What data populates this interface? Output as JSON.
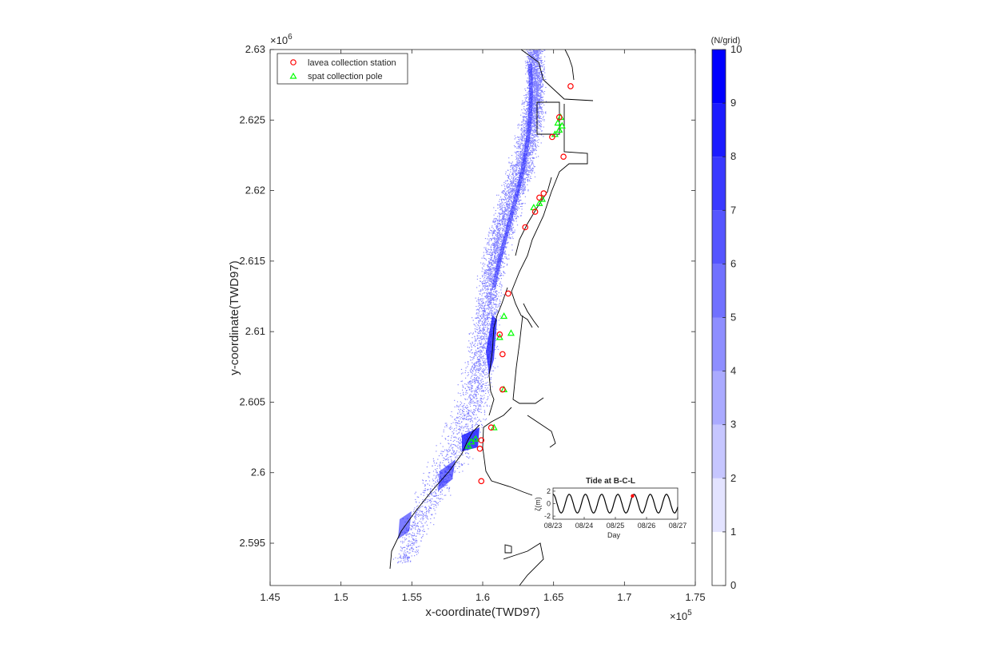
{
  "chart_data": [
    {
      "type": "scatter",
      "title": "",
      "xlabel": "x-coordinate(TWD97)",
      "ylabel": "y-coordinate(TWD97)",
      "x_exponent": "×10",
      "x_exponent_power": "5",
      "y_exponent": "×10",
      "y_exponent_power": "6",
      "xlim": [
        1.45,
        1.75
      ],
      "ylim": [
        2.592,
        2.63
      ],
      "x_ticks": [
        "1.45",
        "1.5",
        "1.55",
        "1.6",
        "1.65",
        "1.7",
        "1.75"
      ],
      "y_ticks": [
        "2.595",
        "2.6",
        "2.605",
        "2.61",
        "2.615",
        "2.62",
        "2.625",
        "2.63"
      ],
      "grid": false,
      "legend_position": "top-left",
      "series": [
        {
          "name": "lavea collection station",
          "marker": "circle",
          "color": "#ff0000",
          "x": [
            1.662,
            1.654,
            1.657,
            1.649,
            1.643,
            1.64,
            1.637,
            1.63,
            1.618,
            1.612,
            1.614,
            1.614,
            1.606,
            1.599,
            1.598,
            1.599
          ],
          "y": [
            2.6274,
            2.6252,
            2.6224,
            2.6238,
            2.6198,
            2.6195,
            2.6185,
            2.6174,
            2.6127,
            2.6098,
            2.6084,
            2.6059,
            2.6032,
            2.6023,
            2.6017,
            2.5994
          ]
        },
        {
          "name": "spat collection pole",
          "marker": "triangle",
          "color": "#00ff00",
          "x": [
            1.655,
            1.653,
            1.656,
            1.654,
            1.651,
            1.642,
            1.64,
            1.636,
            1.615,
            1.62,
            1.612,
            1.615,
            1.608,
            1.595,
            1.59,
            1.592
          ],
          "y": [
            2.6252,
            2.6248,
            2.6246,
            2.6243,
            2.624,
            2.6194,
            2.6191,
            2.6188,
            2.6111,
            2.6099,
            2.6096,
            2.6059,
            2.6032,
            2.6024,
            2.6019,
            2.6022
          ]
        }
      ]
    },
    {
      "type": "line",
      "title": "Tide at B-C-L",
      "xlabel": "Day",
      "ylabel": "ζ(m)",
      "xlim": [
        0,
        4
      ],
      "ylim": [
        -2.5,
        2.5
      ],
      "x_ticks": [
        "08/23",
        "08/24",
        "08/25",
        "08/26",
        "08/27"
      ],
      "y_ticks": [
        "2",
        "0",
        "-2"
      ],
      "amplitude_m": 1.5,
      "period_days": 0.52,
      "current_marker": {
        "x": 2.55,
        "color": "#ff0000"
      },
      "line_color": "#000000"
    },
    {
      "type": "heatmap",
      "colorbar_title": "(N/grid)",
      "levels": [
        "0",
        "1",
        "2",
        "3",
        "4",
        "5",
        "6",
        "7",
        "8",
        "9",
        "10"
      ],
      "color_min": "#ffffff",
      "color_max": "#0000ff"
    }
  ]
}
